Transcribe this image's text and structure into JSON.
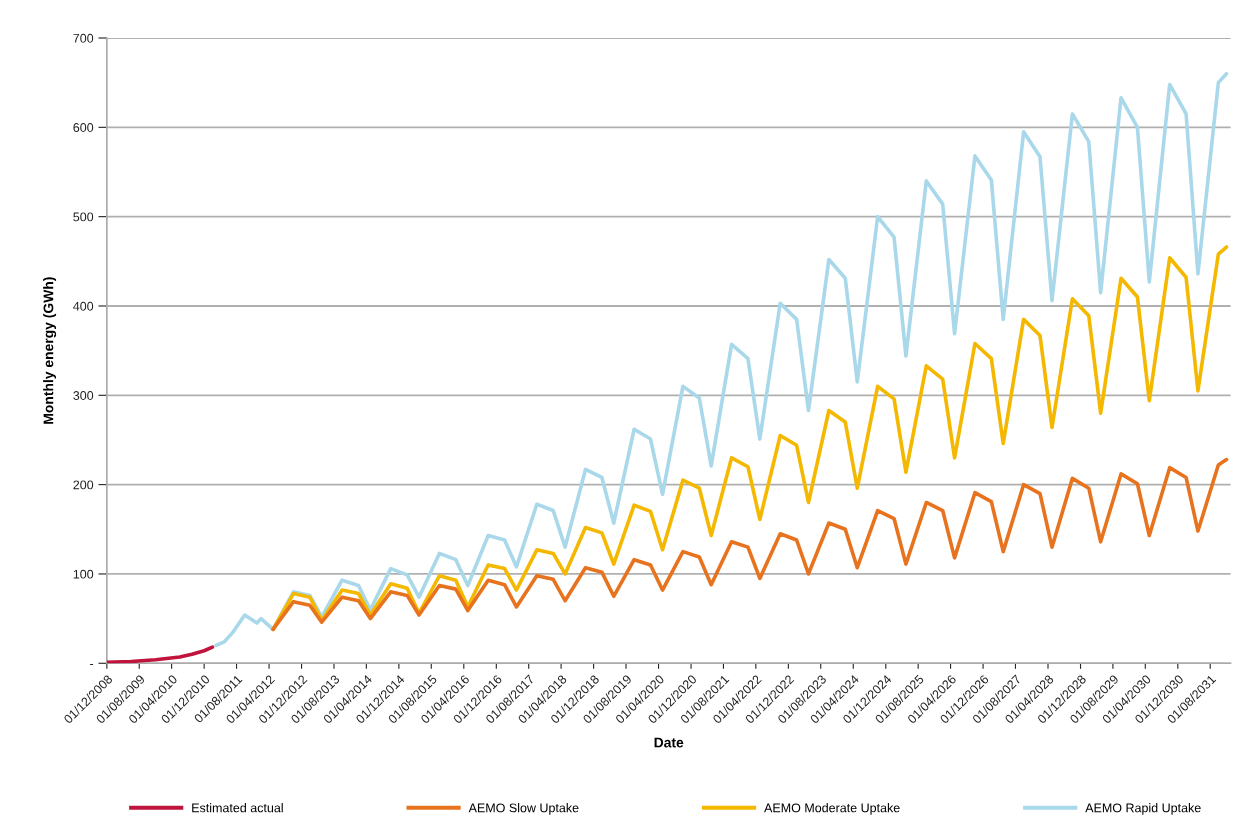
{
  "chart_data": {
    "type": "line",
    "xlabel": "Date",
    "ylabel": "Monthly energy (GWh)",
    "grid": "y",
    "legend": "bottom",
    "xlim": [
      "2008-12",
      "2032-01"
    ],
    "ylim": [
      0,
      700
    ],
    "yticks": [
      {
        "value": 0,
        "label": "-"
      },
      100,
      200,
      300,
      400,
      500,
      600,
      700
    ],
    "xticks": [
      {
        "value": "2008-12",
        "label": "01/12/2008"
      },
      {
        "value": "2009-08",
        "label": "01/08/2009"
      },
      {
        "value": "2010-04",
        "label": "01/04/2010"
      },
      {
        "value": "2010-12",
        "label": "01/12/2010"
      },
      {
        "value": "2011-08",
        "label": "01/08/2011"
      },
      {
        "value": "2012-04",
        "label": "01/04/2012"
      },
      {
        "value": "2012-12",
        "label": "01/12/2012"
      },
      {
        "value": "2013-08",
        "label": "01/08/2013"
      },
      {
        "value": "2014-04",
        "label": "01/04/2014"
      },
      {
        "value": "2014-12",
        "label": "01/12/2014"
      },
      {
        "value": "2015-08",
        "label": "01/08/2015"
      },
      {
        "value": "2016-04",
        "label": "01/04/2016"
      },
      {
        "value": "2016-12",
        "label": "01/12/2016"
      },
      {
        "value": "2017-08",
        "label": "01/08/2017"
      },
      {
        "value": "2018-04",
        "label": "01/04/2018"
      },
      {
        "value": "2018-12",
        "label": "01/12/2018"
      },
      {
        "value": "2019-08",
        "label": "01/08/2019"
      },
      {
        "value": "2020-04",
        "label": "01/04/2020"
      },
      {
        "value": "2020-12",
        "label": "01/12/2020"
      },
      {
        "value": "2021-08",
        "label": "01/08/2021"
      },
      {
        "value": "2022-04",
        "label": "01/04/2022"
      },
      {
        "value": "2022-12",
        "label": "01/12/2022"
      },
      {
        "value": "2023-08",
        "label": "01/08/2023"
      },
      {
        "value": "2024-04",
        "label": "01/04/2024"
      },
      {
        "value": "2024-12",
        "label": "01/12/2024"
      },
      {
        "value": "2025-08",
        "label": "01/08/2025"
      },
      {
        "value": "2026-04",
        "label": "01/04/2026"
      },
      {
        "value": "2026-12",
        "label": "01/12/2026"
      },
      {
        "value": "2027-08",
        "label": "01/08/2027"
      },
      {
        "value": "2028-04",
        "label": "01/04/2028"
      },
      {
        "value": "2028-12",
        "label": "01/12/2028"
      },
      {
        "value": "2029-08",
        "label": "01/08/2029"
      },
      {
        "value": "2030-04",
        "label": "01/04/2030"
      },
      {
        "value": "2030-12",
        "label": "01/12/2030"
      },
      {
        "value": "2031-08",
        "label": "01/08/2031"
      }
    ],
    "series": [
      {
        "name": "Estimated actual",
        "color": "#c0143c",
        "x": [
          "2008-12",
          "2009-06",
          "2009-12",
          "2010-06",
          "2010-09",
          "2010-12",
          "2011-02"
        ],
        "values": [
          1,
          2,
          4,
          7,
          10,
          14,
          18
        ]
      },
      {
        "name": "AEMO Slow Uptake",
        "color": "#e8731f",
        "x": [
          "2012-05",
          "2012-10",
          "2013-02",
          "2013-05",
          "2013-10",
          "2014-02",
          "2014-05",
          "2014-10",
          "2015-02",
          "2015-05",
          "2015-10",
          "2016-02",
          "2016-05",
          "2016-10",
          "2017-02",
          "2017-05",
          "2017-10",
          "2018-02",
          "2018-05",
          "2018-10",
          "2019-02",
          "2019-05",
          "2019-10",
          "2020-02",
          "2020-05",
          "2020-10",
          "2021-02",
          "2021-05",
          "2021-10",
          "2022-02",
          "2022-05",
          "2022-10",
          "2023-02",
          "2023-05",
          "2023-10",
          "2024-02",
          "2024-05",
          "2024-10",
          "2025-02",
          "2025-05",
          "2025-10",
          "2026-02",
          "2026-05",
          "2026-10",
          "2027-02",
          "2027-05",
          "2027-10",
          "2028-02",
          "2028-05",
          "2028-10",
          "2029-02",
          "2029-05",
          "2029-10",
          "2030-02",
          "2030-05",
          "2030-10",
          "2031-02",
          "2031-05",
          "2031-10",
          "2031-12"
        ],
        "values": [
          38,
          69,
          65,
          46,
          74,
          70,
          50,
          80,
          76,
          54,
          87,
          83,
          59,
          93,
          88,
          63,
          98,
          94,
          70,
          107,
          102,
          75,
          116,
          110,
          82,
          125,
          119,
          88,
          136,
          130,
          95,
          145,
          138,
          100,
          157,
          150,
          107,
          171,
          162,
          111,
          180,
          171,
          118,
          191,
          181,
          125,
          200,
          190,
          130,
          207,
          196,
          136,
          212,
          201,
          143,
          219,
          208,
          148,
          222,
          228
        ]
      },
      {
        "name": "AEMO Moderate Uptake",
        "color": "#f5b800",
        "x": [
          "2012-05",
          "2012-10",
          "2013-02",
          "2013-05",
          "2013-10",
          "2014-02",
          "2014-05",
          "2014-10",
          "2015-02",
          "2015-05",
          "2015-10",
          "2016-02",
          "2016-05",
          "2016-10",
          "2017-02",
          "2017-05",
          "2017-10",
          "2018-02",
          "2018-05",
          "2018-10",
          "2019-02",
          "2019-05",
          "2019-10",
          "2020-02",
          "2020-05",
          "2020-10",
          "2021-02",
          "2021-05",
          "2021-10",
          "2022-02",
          "2022-05",
          "2022-10",
          "2023-02",
          "2023-05",
          "2023-10",
          "2024-02",
          "2024-05",
          "2024-10",
          "2025-02",
          "2025-05",
          "2025-10",
          "2026-02",
          "2026-05",
          "2026-10",
          "2027-02",
          "2027-05",
          "2027-10",
          "2028-02",
          "2028-05",
          "2028-10",
          "2029-02",
          "2029-05",
          "2029-10",
          "2030-02",
          "2030-05",
          "2030-10",
          "2031-02",
          "2031-05",
          "2031-10",
          "2031-12"
        ],
        "values": [
          38,
          78,
          74,
          48,
          82,
          78,
          54,
          89,
          84,
          56,
          98,
          93,
          63,
          110,
          106,
          82,
          127,
          123,
          100,
          152,
          146,
          111,
          177,
          170,
          127,
          205,
          196,
          143,
          230,
          220,
          161,
          255,
          244,
          180,
          283,
          270,
          196,
          310,
          296,
          214,
          333,
          318,
          230,
          358,
          341,
          246,
          385,
          367,
          264,
          408,
          389,
          280,
          431,
          410,
          294,
          454,
          432,
          305,
          458,
          466
        ]
      },
      {
        "name": "AEMO Rapid Uptake",
        "color": "#a8d8ea",
        "x": [
          "2011-03",
          "2011-05",
          "2011-07",
          "2011-10",
          "2012-01",
          "2012-02",
          "2012-05",
          "2012-10",
          "2013-02",
          "2013-05",
          "2013-10",
          "2014-02",
          "2014-05",
          "2014-10",
          "2015-02",
          "2015-05",
          "2015-10",
          "2016-02",
          "2016-05",
          "2016-10",
          "2017-02",
          "2017-05",
          "2017-10",
          "2018-02",
          "2018-05",
          "2018-10",
          "2019-02",
          "2019-05",
          "2019-10",
          "2020-02",
          "2020-05",
          "2020-10",
          "2021-02",
          "2021-05",
          "2021-10",
          "2022-02",
          "2022-05",
          "2022-10",
          "2023-02",
          "2023-05",
          "2023-10",
          "2024-02",
          "2024-05",
          "2024-10",
          "2025-02",
          "2025-05",
          "2025-10",
          "2026-02",
          "2026-05",
          "2026-10",
          "2027-02",
          "2027-05",
          "2027-10",
          "2028-02",
          "2028-05",
          "2028-10",
          "2029-02",
          "2029-05",
          "2029-10",
          "2030-02",
          "2030-05",
          "2030-10",
          "2031-02",
          "2031-05",
          "2031-10",
          "2031-12"
        ],
        "values": [
          20,
          24,
          34,
          54,
          45,
          50,
          38,
          80,
          76,
          52,
          93,
          87,
          60,
          106,
          99,
          74,
          123,
          116,
          87,
          143,
          138,
          108,
          178,
          171,
          130,
          217,
          208,
          157,
          262,
          251,
          189,
          310,
          297,
          221,
          357,
          341,
          251,
          403,
          385,
          283,
          452,
          431,
          315,
          500,
          477,
          344,
          540,
          514,
          369,
          568,
          541,
          385,
          595,
          567,
          406,
          615,
          584,
          415,
          633,
          600,
          427,
          648,
          615,
          436,
          650,
          660
        ]
      }
    ]
  }
}
